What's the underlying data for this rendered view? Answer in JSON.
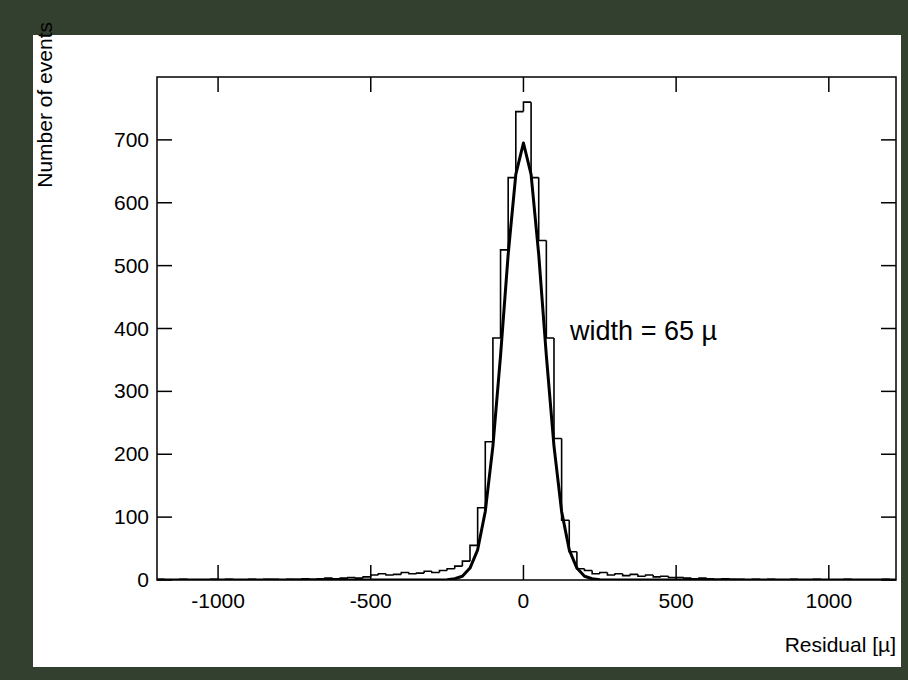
{
  "chart_data": {
    "type": "histogram",
    "x_label": "Residual [µ]",
    "y_label": "Number of events",
    "annotation": "width = 65 µ",
    "color": "#000000",
    "xlim": [
      -1200,
      1220
    ],
    "ylim": [
      0,
      800
    ],
    "xticks": [
      -1000,
      -500,
      0,
      500,
      1000
    ],
    "yticks": [
      0,
      100,
      200,
      300,
      400,
      500,
      600,
      700
    ],
    "bins": [
      -1250,
      -1225,
      -1200,
      -1175,
      -1150,
      -1125,
      -1100,
      -1075,
      -1050,
      -1025,
      -1000,
      -975,
      -950,
      -925,
      -900,
      -875,
      -850,
      -825,
      -800,
      -775,
      -750,
      -725,
      -700,
      -675,
      -650,
      -625,
      -600,
      -575,
      -550,
      -525,
      -500,
      -475,
      -450,
      -425,
      -400,
      -375,
      -350,
      -325,
      -300,
      -275,
      -250,
      -225,
      -200,
      -175,
      -150,
      -125,
      -100,
      -75,
      -50,
      -25,
      0,
      25,
      50,
      75,
      100,
      125,
      150,
      175,
      200,
      225,
      250,
      275,
      300,
      325,
      350,
      375,
      400,
      425,
      450,
      475,
      500,
      525,
      550,
      575,
      600,
      625,
      650,
      675,
      700,
      725,
      750,
      775,
      800,
      825,
      850,
      875,
      900,
      925,
      950,
      975,
      1000,
      1025,
      1050,
      1075,
      1100,
      1125,
      1150,
      1175,
      1200,
      1225,
      1250
    ],
    "values": [
      0,
      0,
      1,
      0,
      0,
      1,
      0,
      0,
      0,
      1,
      0,
      1,
      0,
      0,
      1,
      0,
      1,
      1,
      0,
      1,
      1,
      2,
      1,
      2,
      3,
      2,
      3,
      4,
      3,
      5,
      8,
      10,
      8,
      9,
      12,
      10,
      11,
      14,
      12,
      15,
      18,
      22,
      30,
      55,
      115,
      220,
      385,
      525,
      640,
      745,
      760,
      640,
      540,
      385,
      225,
      95,
      45,
      18,
      15,
      10,
      12,
      8,
      10,
      7,
      9,
      6,
      8,
      5,
      6,
      4,
      4,
      3,
      2,
      3,
      2,
      1,
      2,
      1,
      1,
      0,
      1,
      0,
      1,
      0,
      0,
      1,
      0,
      0,
      1,
      0,
      0,
      0,
      1,
      0,
      0,
      0,
      0,
      1,
      0,
      0
    ],
    "fit": {
      "type": "line",
      "color": "#000000",
      "x": [
        -1250,
        -300,
        -275,
        -250,
        -225,
        -200,
        -175,
        -150,
        -125,
        -100,
        -75,
        -50,
        -25,
        0,
        25,
        50,
        75,
        100,
        125,
        150,
        175,
        200,
        225,
        250,
        275,
        300,
        1250
      ],
      "values": [
        0,
        0,
        0,
        0.5,
        2,
        6,
        19,
        48,
        109,
        213,
        357,
        518,
        645,
        695,
        645,
        518,
        357,
        213,
        109,
        48,
        19,
        6,
        2,
        0.5,
        0,
        0,
        0
      ]
    }
  }
}
